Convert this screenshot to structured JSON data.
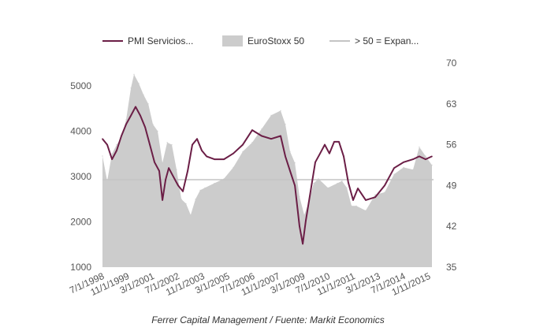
{
  "chart_data": {
    "type": "area",
    "caption": "Ferrer Capital Management / Fuente: Markit Economics",
    "legend": [
      {
        "label": "PMI Servicios...",
        "color": "#6B1E46",
        "kind": "line"
      },
      {
        "label": "EuroStoxx 50",
        "color": "#CCCCCC",
        "kind": "area"
      },
      {
        "label": "> 50 = Expan...",
        "color": "#C4C4C4",
        "kind": "line"
      }
    ],
    "legend_position": "top",
    "grid": false,
    "x_range": [
      "1998-07-01",
      "2016-01-01"
    ],
    "x_tick_labels": [
      "7/1/1998",
      "11/1/1999",
      "3/1/2001",
      "7/1/2002",
      "11/1/2003",
      "3/1/2005",
      "7/1/2006",
      "11/1/2007",
      "3/1/2009",
      "7/1/2010",
      "11/1/2011",
      "3/1/2013",
      "7/1/2014",
      "1/11/2015"
    ],
    "y_left": {
      "range": [
        1000,
        5500
      ],
      "ticks": [
        "1000",
        "2000",
        "3000",
        "4000",
        "5000"
      ]
    },
    "y_right": {
      "range": [
        35,
        70
      ],
      "ticks": [
        "35",
        "42",
        "49",
        "56",
        "63",
        "70"
      ]
    },
    "threshold": {
      "value": 50,
      "axis": "right",
      "color": "#C4C4C4"
    },
    "series": [
      {
        "name": "EuroStoxx 50",
        "axis": "left",
        "color": "#CCCCCC",
        "x": [
          "1998-07-01",
          "1998-10-01",
          "1999-01-01",
          "1999-04-01",
          "1999-07-01",
          "1999-10-01",
          "2000-01-01",
          "2000-03-01",
          "2000-06-01",
          "2000-09-01",
          "2000-12-01",
          "2001-03-01",
          "2001-06-01",
          "2001-09-01",
          "2001-12-01",
          "2002-03-01",
          "2002-06-01",
          "2002-09-01",
          "2002-12-01",
          "2003-03-01",
          "2003-06-01",
          "2003-09-01",
          "2003-12-01",
          "2004-06-01",
          "2004-12-01",
          "2005-06-01",
          "2005-12-01",
          "2006-06-01",
          "2006-12-01",
          "2007-06-01",
          "2007-12-01",
          "2008-03-01",
          "2008-06-01",
          "2008-09-01",
          "2008-12-01",
          "2009-03-01",
          "2009-06-01",
          "2009-09-01",
          "2009-12-01",
          "2010-06-01",
          "2010-12-01",
          "2011-03-01",
          "2011-06-01",
          "2011-09-01",
          "2011-12-01",
          "2012-06-01",
          "2012-12-01",
          "2013-06-01",
          "2013-12-01",
          "2014-06-01",
          "2014-12-01",
          "2015-04-01",
          "2015-08-01",
          "2015-12-01"
        ],
        "values": [
          3450,
          2900,
          3500,
          3700,
          3850,
          4250,
          4950,
          5250,
          5050,
          4800,
          4600,
          4150,
          4000,
          3300,
          3750,
          3700,
          3150,
          2500,
          2400,
          2150,
          2500,
          2700,
          2750,
          2850,
          2950,
          3200,
          3550,
          3750,
          4050,
          4350,
          4450,
          4150,
          3550,
          3300,
          2550,
          2150,
          2450,
          2850,
          2950,
          2750,
          2850,
          2900,
          2750,
          2350,
          2350,
          2250,
          2600,
          2650,
          3050,
          3200,
          3150,
          3650,
          3450,
          3250
        ]
      },
      {
        "name": "PMI Servicios...",
        "axis": "right",
        "color": "#6B1E46",
        "x": [
          "1998-07-01",
          "1998-10-01",
          "1999-01-01",
          "1999-04-01",
          "1999-07-01",
          "1999-10-01",
          "2000-01-01",
          "2000-04-01",
          "2000-07-01",
          "2000-10-01",
          "2001-01-01",
          "2001-04-01",
          "2001-07-01",
          "2001-09-01",
          "2001-11-01",
          "2002-01-01",
          "2002-04-01",
          "2002-07-01",
          "2002-10-01",
          "2003-01-01",
          "2003-04-01",
          "2003-07-01",
          "2003-10-01",
          "2004-01-01",
          "2004-06-01",
          "2004-12-01",
          "2005-06-01",
          "2005-12-01",
          "2006-06-01",
          "2006-12-01",
          "2007-06-01",
          "2007-12-01",
          "2008-03-01",
          "2008-06-01",
          "2008-09-01",
          "2008-12-01",
          "2009-02-01",
          "2009-04-01",
          "2009-07-01",
          "2009-10-01",
          "2010-01-01",
          "2010-04-01",
          "2010-07-01",
          "2010-10-01",
          "2011-01-01",
          "2011-04-01",
          "2011-07-01",
          "2011-10-01",
          "2012-01-01",
          "2012-06-01",
          "2012-12-01",
          "2013-06-01",
          "2013-12-01",
          "2014-06-01",
          "2014-12-01",
          "2015-04-01",
          "2015-08-01",
          "2015-12-01"
        ],
        "values": [
          57.0,
          56.0,
          53.5,
          55.0,
          57.5,
          59.5,
          61.0,
          62.5,
          61.0,
          59.0,
          56.0,
          53.0,
          51.5,
          46.5,
          50.0,
          52.0,
          50.5,
          49.0,
          48.0,
          51.5,
          56.0,
          57.0,
          55.0,
          54.0,
          53.5,
          53.5,
          54.5,
          56.0,
          58.5,
          57.5,
          57.0,
          57.5,
          54.0,
          51.5,
          49.0,
          42.0,
          39.0,
          43.0,
          48.0,
          53.0,
          54.5,
          56.0,
          54.5,
          56.5,
          56.5,
          54.0,
          49.5,
          46.5,
          48.5,
          46.5,
          47.0,
          49.0,
          52.0,
          53.0,
          53.5,
          54.0,
          53.5,
          54.0
        ]
      }
    ]
  }
}
